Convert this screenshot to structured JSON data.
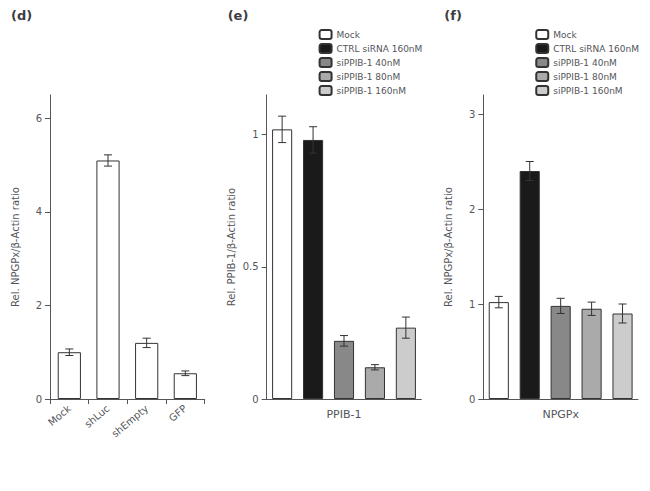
{
  "chart_data": [
    {
      "type": "bar",
      "title": "(d)",
      "categories": [
        "Mock",
        "shLuc",
        "shEmpty",
        "GFP"
      ],
      "values": [
        1.0,
        5.1,
        1.2,
        0.55
      ],
      "errors": [
        0.07,
        0.12,
        0.1,
        0.05
      ],
      "color": "white",
      "ylabel": "Rel. NPGPx/β-Actin ratio",
      "ylim": [
        0,
        6.5
      ],
      "yticks": [
        0,
        2,
        4,
        6
      ],
      "grid": false
    },
    {
      "type": "bar",
      "title": "(e)",
      "categories": [
        "Mock",
        "CTRL siRNA 160nM",
        "siPPIB-1 40nM",
        "siPPIB-1 80nM",
        "siPPIB-1 160nM"
      ],
      "values": [
        1.02,
        0.98,
        0.22,
        0.12,
        0.27
      ],
      "errors": [
        0.05,
        0.05,
        0.02,
        0.01,
        0.04
      ],
      "colors": [
        "white",
        "#1a1a1a",
        "#888888",
        "#aaaaaa",
        "#cccccc"
      ],
      "ylabel": "Rel. PPIB-1/β-Actin ratio",
      "xlabel": "PPIB-1",
      "ylim": [
        0,
        1.15
      ],
      "yticks": [
        0,
        0.5,
        1
      ],
      "legend": "upper right",
      "tick_labels": "y",
      "grid": false
    },
    {
      "type": "bar",
      "title": "(f)",
      "categories": [
        "Mock",
        "CTRL siRNA 160nM",
        "siPPIB-1 40nM",
        "siPPIB-1 80nM",
        "siPPIB-1 160nM"
      ],
      "values": [
        1.02,
        2.4,
        0.98,
        0.95,
        0.9
      ],
      "errors": [
        0.06,
        0.1,
        0.08,
        0.07,
        0.1
      ],
      "colors": [
        "white",
        "#1a1a1a",
        "#888888",
        "#aaaaaa",
        "#cccccc"
      ],
      "ylabel": "Rel. NPGPx/β-Actin ratio",
      "xlabel": "NPGPx",
      "ylim": [
        0,
        3.2
      ],
      "yticks": [
        0,
        1,
        2,
        3
      ],
      "legend": "upper right",
      "tick_labels": "y",
      "grid": false
    }
  ]
}
